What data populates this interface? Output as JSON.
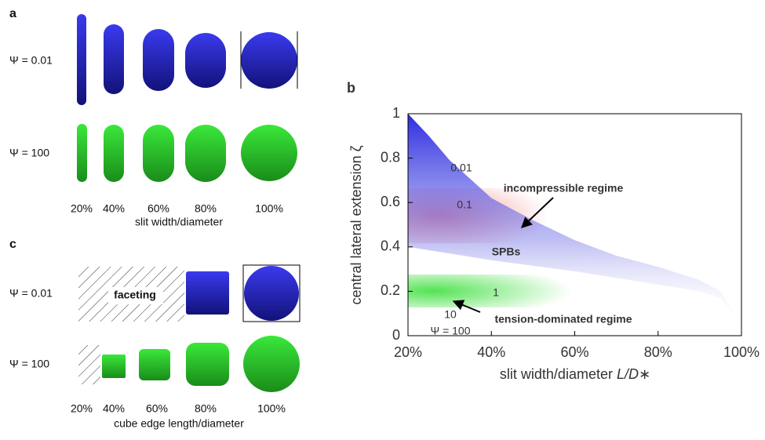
{
  "panel_a": {
    "label": "a",
    "rows": [
      "Ψ = 0.01",
      "Ψ = 100"
    ],
    "columns": [
      "20%",
      "40%",
      "60%",
      "80%",
      "100%"
    ],
    "caption": "slit width/diameter"
  },
  "panel_c": {
    "label": "c",
    "rows": [
      "Ψ = 0.01",
      "Ψ = 100"
    ],
    "columns": [
      "20%",
      "40%",
      "60%",
      "80%",
      "100%"
    ],
    "annotation": "faceting",
    "caption": "cube edge length/diameter"
  },
  "chart_data": {
    "type": "line",
    "panel_label": "b",
    "x_label": "slit width/diameter",
    "x_label_symbol": "L/D∗",
    "y_label": "central lateral extension ζ",
    "x": [
      20,
      25,
      30,
      40,
      50,
      60,
      70,
      80,
      90,
      95,
      100
    ],
    "xlim": [
      20,
      100
    ],
    "xticks": [
      {
        "value": 20,
        "label": "20%"
      },
      {
        "value": 40,
        "label": "40%"
      },
      {
        "value": 60,
        "label": "60%"
      },
      {
        "value": 80,
        "label": "80%"
      },
      {
        "value": 100,
        "label": "100%"
      }
    ],
    "ylim": [
      0,
      1
    ],
    "yticks": [
      0,
      0.2,
      0.4,
      0.6,
      0.8,
      1
    ],
    "series": [
      {
        "style": "dotted",
        "color": "#000000",
        "values": [
          1.0,
          0.88,
          0.78,
          0.6,
          0.5,
          0.43,
          0.38,
          0.34,
          0.3,
          0.285,
          0.27
        ]
      },
      {
        "name": "0.01",
        "color": "#000000",
        "values": [
          1.0,
          0.9,
          0.79,
          0.62,
          0.52,
          0.43,
          0.36,
          0.31,
          0.25,
          0.2,
          0.05
        ]
      },
      {
        "name": "0.1",
        "color": "#000000",
        "values": [
          0.92,
          0.8,
          0.71,
          0.57,
          0.48,
          0.4,
          0.34,
          0.28,
          0.22,
          0.18,
          0.03
        ]
      },
      {
        "name": "1",
        "color": "#000000",
        "values": [
          0.4,
          0.385,
          0.37,
          0.34,
          0.315,
          0.29,
          0.26,
          0.23,
          0.2,
          0.17,
          0.04
        ]
      },
      {
        "name": "10",
        "color": "#000000",
        "values": [
          0.16,
          0.155,
          0.15,
          0.14,
          0.13,
          0.12,
          0.11,
          0.1,
          0.085,
          0.07,
          0.03
        ]
      },
      {
        "name": "Ψ = 100",
        "color": "#000000",
        "values": [
          0.15,
          0.146,
          0.142,
          0.135,
          0.126,
          0.118,
          0.108,
          0.098,
          0.082,
          0.068,
          0.03
        ]
      }
    ],
    "annotations": [
      "incompressible regime",
      "SPBs",
      "tension-dominated regime"
    ]
  }
}
